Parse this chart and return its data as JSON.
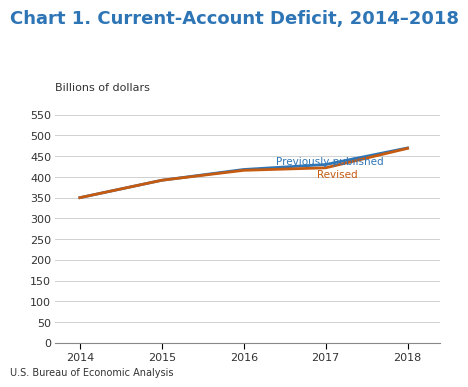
{
  "title": "Chart 1. Current-Account Deficit, 2014–2018",
  "ylabel": "Billions of dollars",
  "footnote": "U.S. Bureau of Economic Analysis",
  "years": [
    2014,
    2015,
    2016,
    2017,
    2018
  ],
  "previously_published": [
    350,
    392,
    418,
    430,
    470
  ],
  "revised": [
    350,
    392,
    416,
    422,
    469
  ],
  "line_color_prev": "#2e75b6",
  "line_color_rev": "#c55a11",
  "label_prev": "Previously published",
  "label_rev": "Revised",
  "title_color": "#2e75b6",
  "ylabel_color": "#333333",
  "tick_label_color": "#333333",
  "footnote_color": "#333333",
  "ylim": [
    0,
    570
  ],
  "yticks": [
    0,
    50,
    100,
    150,
    200,
    250,
    300,
    350,
    400,
    450,
    500,
    550
  ],
  "xlim": [
    2013.7,
    2018.4
  ],
  "background_color": "#ffffff",
  "grid_color": "#d0d0d0",
  "line_width": 2.0,
  "title_fontsize": 13,
  "axis_fontsize": 8,
  "label_fontsize": 7.5,
  "footnote_fontsize": 7
}
